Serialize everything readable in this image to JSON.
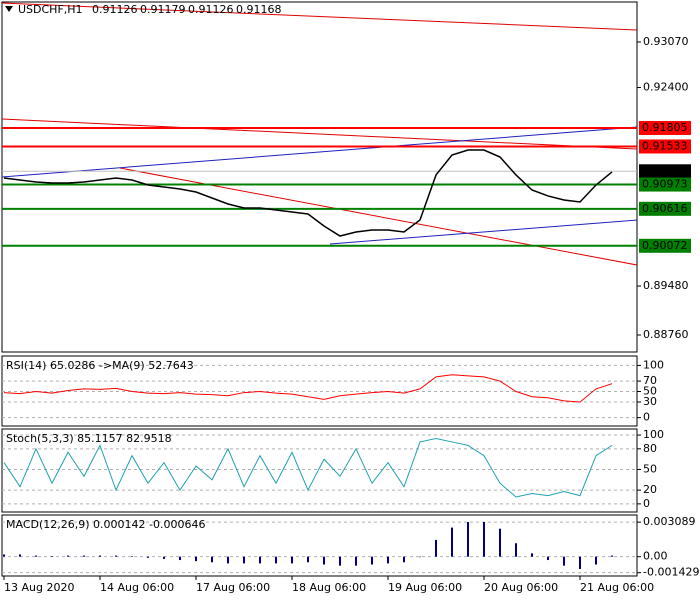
{
  "chart_data": [
    {
      "type": "line",
      "symbol": "USDCHF,H1",
      "ohlc": [
        {
          "value": 0.91126,
          "label": "0.91126"
        },
        {
          "value": 0.91179,
          "label": "0.91179"
        },
        {
          "value": 0.91126,
          "label": "0.91126"
        },
        {
          "value": 0.91168,
          "label": "0.91168"
        }
      ],
      "categories": [
        "13 Aug 2020",
        null,
        null,
        null,
        null,
        null,
        "14 Aug 06:00",
        null,
        null,
        null,
        null,
        null,
        "17 Aug 06:00",
        null,
        null,
        null,
        null,
        null,
        "18 Aug 06:00",
        null,
        null,
        null,
        null,
        null,
        "19 Aug 06:00",
        null,
        null,
        null,
        null,
        null,
        "20 Aug 06:00",
        null,
        null,
        null,
        null,
        null,
        "21 Aug 06:00",
        null,
        null
      ],
      "values": [
        0.91069,
        0.9104,
        0.91011,
        0.90996,
        0.90996,
        0.91011,
        0.9104,
        0.91069,
        0.9104,
        0.90966,
        0.90937,
        0.90908,
        0.90863,
        0.90775,
        0.90687,
        0.90628,
        0.90628,
        0.90599,
        0.90569,
        0.9054,
        0.90363,
        0.90216,
        0.90275,
        0.90305,
        0.90305,
        0.90275,
        0.90452,
        0.91114,
        0.91408,
        0.91481,
        0.91481,
        0.91378,
        0.91114,
        0.90893,
        0.90805,
        0.90746,
        0.90716,
        0.90966,
        0.91158
      ],
      "color": "#000000",
      "ylim": [
        0.8851,
        0.93658
      ],
      "yticks": [
        {
          "value": 0.9307,
          "label": "0.93070"
        },
        {
          "value": 0.924,
          "label": "0.92400"
        },
        {
          "value": 0.8948,
          "label": "0.89480"
        },
        {
          "value": 0.8876,
          "label": "0.88760"
        }
      ],
      "levels": [
        {
          "value": 0.91805,
          "label": "0.91805",
          "color": "#ff0000"
        },
        {
          "value": 0.91533,
          "label": "0.91533",
          "color": "#ff0000"
        },
        {
          "value": 0.91168,
          "label": "0.91168",
          "color": "#000000"
        },
        {
          "value": 0.90973,
          "label": "0.90973",
          "color": "#008000"
        },
        {
          "value": 0.90616,
          "label": "0.90616",
          "color": "#008000"
        },
        {
          "value": 0.90072,
          "label": "0.90072",
          "color": "#008000"
        }
      ]
    },
    {
      "type": "line",
      "header": "RSI(14) 65.0286 ->MA(9) 52.7643",
      "color": "#ff0000",
      "values": [
        48,
        46,
        50,
        47,
        52,
        55,
        54,
        56,
        50,
        47,
        46,
        48,
        45,
        44,
        42,
        48,
        50,
        47,
        45,
        40,
        35,
        42,
        45,
        48,
        50,
        47,
        55,
        78,
        82,
        80,
        78,
        70,
        50,
        40,
        38,
        32,
        30,
        55,
        65
      ],
      "ylim": [
        -16,
        118
      ],
      "yticks": [
        100,
        70,
        50,
        30,
        0
      ]
    },
    {
      "type": "line",
      "header": "Stoch(5,3,3) 85.1157 82.9518",
      "color": "#20a0b0",
      "values": [
        60,
        25,
        80,
        30,
        75,
        40,
        85,
        20,
        70,
        30,
        60,
        20,
        55,
        35,
        80,
        25,
        70,
        30,
        75,
        20,
        65,
        40,
        80,
        30,
        60,
        25,
        90,
        95,
        90,
        85,
        70,
        30,
        10,
        15,
        12,
        18,
        12,
        70,
        85
      ],
      "ylim": [
        -11.8,
        108.8
      ],
      "yticks": [
        100,
        80,
        50,
        20,
        0
      ]
    },
    {
      "type": "bar",
      "header": "MACD(12,26,9) 0.000142 -0.000646",
      "color": "#000080",
      "values": [
        0.0002,
        0.0002,
        0.0001,
        5e-05,
        0.0001,
        0.0001,
        0.0001,
        0.0001,
        5e-05,
        -0.0001,
        -0.0002,
        -0.0003,
        -0.0004,
        -0.0005,
        -0.0006,
        -0.0006,
        -0.0006,
        -0.0006,
        -0.0006,
        -0.0005,
        -0.0007,
        -0.0008,
        -0.0008,
        -0.0007,
        -0.0006,
        -0.0005,
        0,
        0.0015,
        0.0026,
        0.0031,
        0.0031,
        0.0025,
        0.0012,
        0.0003,
        -0.0003,
        -0.0008,
        -0.0011,
        -0.0007,
        0.0001
      ],
      "ylim": [
        -0.001726,
        0.003725
      ],
      "yticks": [
        0.003089,
        {
          "value": 0,
          "label": "0.00"
        },
        -0.001429
      ]
    }
  ]
}
